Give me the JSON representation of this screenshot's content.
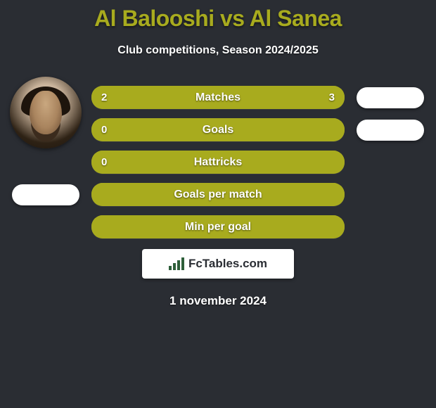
{
  "title": "Al Balooshi vs Al Sanea",
  "subtitle": "Club competitions, Season 2024/2025",
  "date": "1 november 2024",
  "logo_text": "FcTables.com",
  "colors": {
    "background": "#2a2d33",
    "accent": "#a8ab1e",
    "bar_fill": "#a8ab1e",
    "bar_empty_fill": "#a8ab1e",
    "flag": "#ffffff",
    "text": "#ffffff"
  },
  "left_player": {
    "has_avatar": true,
    "flag_row_index": 3
  },
  "right_player": {
    "has_avatar": false,
    "flag_rows": [
      0,
      1
    ]
  },
  "stats": [
    {
      "label": "Matches",
      "left_value": "2",
      "right_value": "3",
      "left_pct": 40,
      "right_pct": 60,
      "left_color": "#a8ab1e",
      "right_color": "#a8ab1e",
      "show_values": true
    },
    {
      "label": "Goals",
      "left_value": "0",
      "right_value": "",
      "left_pct": 100,
      "right_pct": 0,
      "left_color": "#a8ab1e",
      "right_color": "#a8ab1e",
      "show_values": true
    },
    {
      "label": "Hattricks",
      "left_value": "0",
      "right_value": "",
      "left_pct": 100,
      "right_pct": 0,
      "left_color": "#a8ab1e",
      "right_color": "#a8ab1e",
      "show_values": true
    },
    {
      "label": "Goals per match",
      "left_value": "",
      "right_value": "",
      "left_pct": 100,
      "right_pct": 0,
      "left_color": "#a8ab1e",
      "right_color": "#a8ab1e",
      "show_values": false
    },
    {
      "label": "Min per goal",
      "left_value": "",
      "right_value": "",
      "left_pct": 100,
      "right_pct": 0,
      "left_color": "#a8ab1e",
      "right_color": "#a8ab1e",
      "show_values": false
    }
  ]
}
